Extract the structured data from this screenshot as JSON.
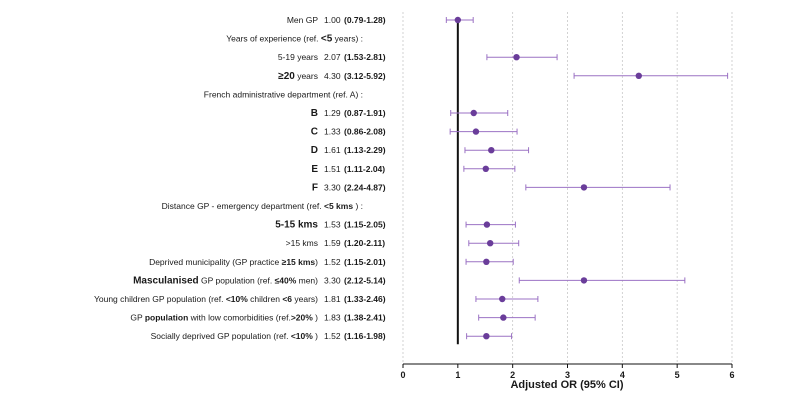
{
  "chart_data": {
    "type": "scatter",
    "subtype": "forest-plot",
    "xlabel": "Adjusted OR (95% CI)",
    "xlim": [
      0,
      6
    ],
    "x_ticks": [
      "0",
      "1",
      "2",
      "3",
      "4",
      "5",
      "6"
    ],
    "reference_line": 1,
    "grid": "vertical dotted",
    "colors": {
      "marker": "#6a3d9a",
      "ci": "#9b72c4",
      "ref_line": "#111111"
    },
    "rows": [
      {
        "label": [
          {
            "t": "Men GP"
          }
        ],
        "or": 1.0,
        "or_text": "1.00",
        "ci_text": "(0.79-1.28)",
        "lo": 0.79,
        "hi": 1.28
      },
      {
        "label": [
          {
            "t": "Years of experience (ref. "
          },
          {
            "t": "<5",
            "s": "big"
          },
          {
            "t": " years) :"
          }
        ],
        "header": true
      },
      {
        "label": [
          {
            "t": "5-19 years"
          }
        ],
        "or": 2.07,
        "or_text": "2.07",
        "ci_text": "(1.53-2.81)",
        "lo": 1.53,
        "hi": 2.81
      },
      {
        "label": [
          {
            "t": "≥20",
            "s": "big"
          },
          {
            "t": " years"
          }
        ],
        "or": 4.3,
        "or_text": "4.30",
        "ci_text": "(3.12-5.92)",
        "lo": 3.12,
        "hi": 5.92
      },
      {
        "label": [
          {
            "t": "French administrative department (ref. A) :"
          }
        ],
        "header": true
      },
      {
        "label": [
          {
            "t": "B",
            "s": "big"
          }
        ],
        "or": 1.29,
        "or_text": "1.29",
        "ci_text": "(0.87-1.91)",
        "lo": 0.87,
        "hi": 1.91
      },
      {
        "label": [
          {
            "t": "C",
            "s": "big"
          }
        ],
        "or": 1.33,
        "or_text": "1.33",
        "ci_text": "(0.86-2.08)",
        "lo": 0.86,
        "hi": 2.08
      },
      {
        "label": [
          {
            "t": "D",
            "s": "big"
          }
        ],
        "or": 1.61,
        "or_text": "1.61",
        "ci_text": "(1.13-2.29)",
        "lo": 1.13,
        "hi": 2.29
      },
      {
        "label": [
          {
            "t": "E",
            "s": "big"
          }
        ],
        "or": 1.51,
        "or_text": "1.51",
        "ci_text": "(1.11-2.04)",
        "lo": 1.11,
        "hi": 2.04
      },
      {
        "label": [
          {
            "t": "F",
            "s": "big"
          }
        ],
        "or": 3.3,
        "or_text": "3.30",
        "ci_text": "(2.24-4.87)",
        "lo": 2.24,
        "hi": 4.87
      },
      {
        "label": [
          {
            "t": "Distance GP - emergency department (ref. "
          },
          {
            "t": "<5 kms",
            "s": "b"
          },
          {
            "t": " ) :"
          }
        ],
        "header": true
      },
      {
        "label": [
          {
            "t": "5-15 kms",
            "s": "big"
          }
        ],
        "or": 1.53,
        "or_text": "1.53",
        "ci_text": "(1.15-2.05)",
        "lo": 1.15,
        "hi": 2.05
      },
      {
        "label": [
          {
            "t": ">15 kms"
          }
        ],
        "or": 1.59,
        "or_text": "1.59",
        "ci_text": "(1.20-2.11)",
        "lo": 1.2,
        "hi": 2.11
      },
      {
        "label": [
          {
            "t": "Deprived municipality (GP practice "
          },
          {
            "t": "≥15 kms",
            "s": "b"
          },
          {
            "t": ")"
          }
        ],
        "or": 1.52,
        "or_text": "1.52",
        "ci_text": "(1.15-2.01)",
        "lo": 1.15,
        "hi": 2.01
      },
      {
        "label": [
          {
            "t": "Masculanised",
            "s": "big"
          },
          {
            "t": " GP population (ref. "
          },
          {
            "t": "≤40%",
            "s": "b"
          },
          {
            "t": " men)"
          }
        ],
        "or": 3.3,
        "or_text": "3.30",
        "ci_text": "(2.12-5.14)",
        "lo": 2.12,
        "hi": 5.14
      },
      {
        "label": [
          {
            "t": "Young children  GP population (ref. "
          },
          {
            "t": "<10%",
            "s": "b"
          },
          {
            "t": " children "
          },
          {
            "t": "<6",
            "s": "b"
          },
          {
            "t": " years)"
          }
        ],
        "or": 1.81,
        "or_text": "1.81",
        "ci_text": "(1.33-2.46)",
        "lo": 1.33,
        "hi": 2.46
      },
      {
        "label": [
          {
            "t": "GP "
          },
          {
            "t": "population",
            "s": "b"
          },
          {
            "t": " with low comorbidities (ref."
          },
          {
            "t": ">20%",
            "s": "b"
          },
          {
            "t": " )"
          }
        ],
        "or": 1.83,
        "or_text": "1.83",
        "ci_text": "(1.38-2.41)",
        "lo": 1.38,
        "hi": 2.41
      },
      {
        "label": [
          {
            "t": "Socially deprived GP population (ref. "
          },
          {
            "t": "<10%",
            "s": "b"
          },
          {
            "t": " )"
          }
        ],
        "or": 1.52,
        "or_text": "1.52",
        "ci_text": "(1.16-1.98)",
        "lo": 1.16,
        "hi": 1.98
      }
    ]
  }
}
